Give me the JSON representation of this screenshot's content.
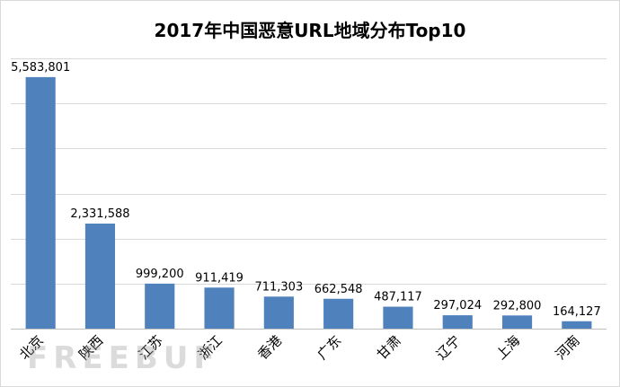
{
  "chart_data": {
    "type": "bar",
    "title": "2017年中国恶意URL地域分布Top10",
    "xlabel": "",
    "ylabel": "",
    "categories": [
      "北京",
      "陕西",
      "江苏",
      "浙江",
      "香港",
      "广东",
      "甘肃",
      "辽宁",
      "上海",
      "河南"
    ],
    "values": [
      5583801,
      2331588,
      999200,
      911419,
      711303,
      662548,
      487117,
      297024,
      292800,
      164127
    ],
    "value_labels": [
      "5,583,801",
      "2,331,588",
      "999,200",
      "911,419",
      "711,303",
      "662,548",
      "487,117",
      "297,024",
      "292,800",
      "164,127"
    ],
    "ylim": [
      0,
      6000000
    ],
    "ytick_step": 1000000,
    "grid": true,
    "legend": "none",
    "bar_color": "#4f81bd",
    "watermark": "FREEBUF"
  }
}
